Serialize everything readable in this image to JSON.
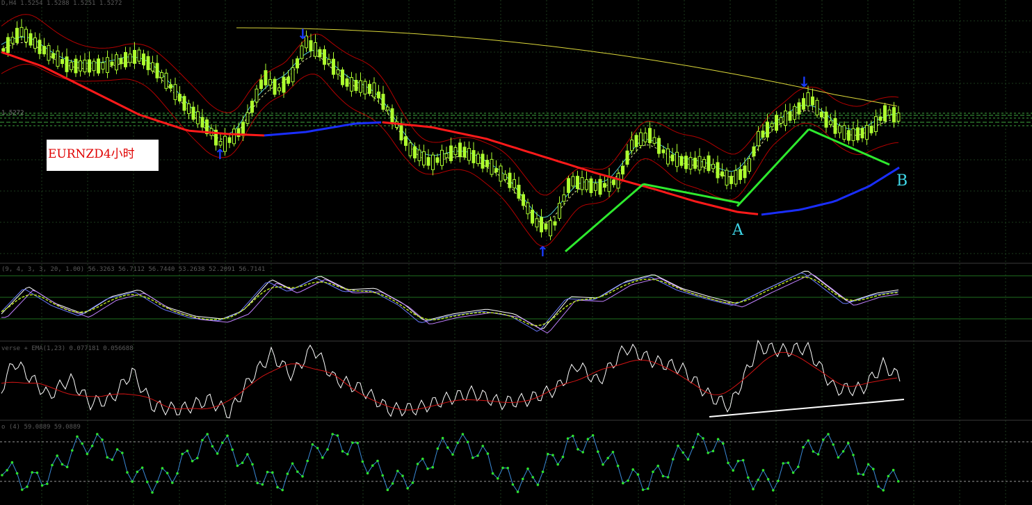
{
  "price_panel": {
    "header": "D,H4  1.5254 1.5288 1.5251 1.5272",
    "symbol_label": "EURNZD4小时",
    "price_tag": "1.5272",
    "wave_labels": {
      "a": "A",
      "b": "B"
    },
    "arrow_up": "↑",
    "arrow_down": "↓"
  },
  "stoch_panel": {
    "header": "(9, 4, 3, 3, 20, 1.00) 56.3263 56.7112 56.7440 53.2638 52.2091 56.7141"
  },
  "osc_panel": {
    "header": "verse + EMA(1,23) 0.077181 0.056688"
  },
  "rsi_panel": {
    "header": "o (4) 59.0889 59.0889"
  },
  "colors": {
    "background": "#000000",
    "bull_candle": "#adff2f",
    "upper_band": "#b40000",
    "ma_red": "#ff1a1a",
    "ma_blue": "#1a2eff",
    "ma_yellow": "#dcd83a",
    "trend_green": "#2eea2e",
    "wave_label": "#3fd7e8",
    "grid": "#1b3a1b"
  },
  "chart_data": {
    "type": "candlestick",
    "symbol": "EURNZD",
    "last_quote": {
      "open": 1.5254,
      "high": 1.5288,
      "low": 1.5251,
      "close": 1.5272
    },
    "indicator_readouts": {
      "stochastic": [
        56.3263,
        56.7112,
        56.744,
        53.2638,
        52.2091,
        56.7141
      ],
      "oscillator_ema": [
        0.077181,
        0.056688
      ],
      "rsi": [
        59.0889,
        59.0889
      ]
    }
  }
}
